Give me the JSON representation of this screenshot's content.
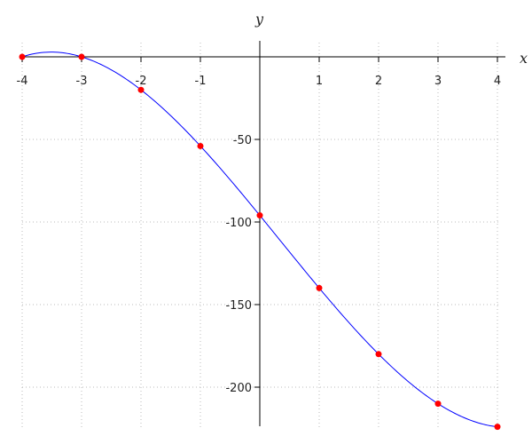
{
  "chart_data": {
    "type": "line",
    "title": "",
    "xlabel": "x",
    "ylabel": "y",
    "xlim": [
      -4,
      4
    ],
    "ylim": [
      -225,
      0
    ],
    "x_ticks": [
      "-4",
      "-3",
      "-2",
      "-1",
      "1",
      "2",
      "3",
      "4"
    ],
    "x_tick_values": [
      -4,
      -3,
      -2,
      -1,
      1,
      2,
      3,
      4
    ],
    "y_ticks": [
      "-50",
      "-100",
      "-150",
      "-200"
    ],
    "y_tick_values": [
      -50,
      -100,
      -150,
      -200
    ],
    "grid": true,
    "series": [
      {
        "x": [
          -4,
          -3,
          -2,
          -1,
          0,
          1,
          2,
          3,
          4
        ],
        "y": [
          0,
          0,
          -20,
          -54,
          -96,
          -140,
          -180,
          -210,
          -224
        ],
        "line_color": "#0000ff",
        "marker_color": "#ff0000"
      }
    ]
  }
}
